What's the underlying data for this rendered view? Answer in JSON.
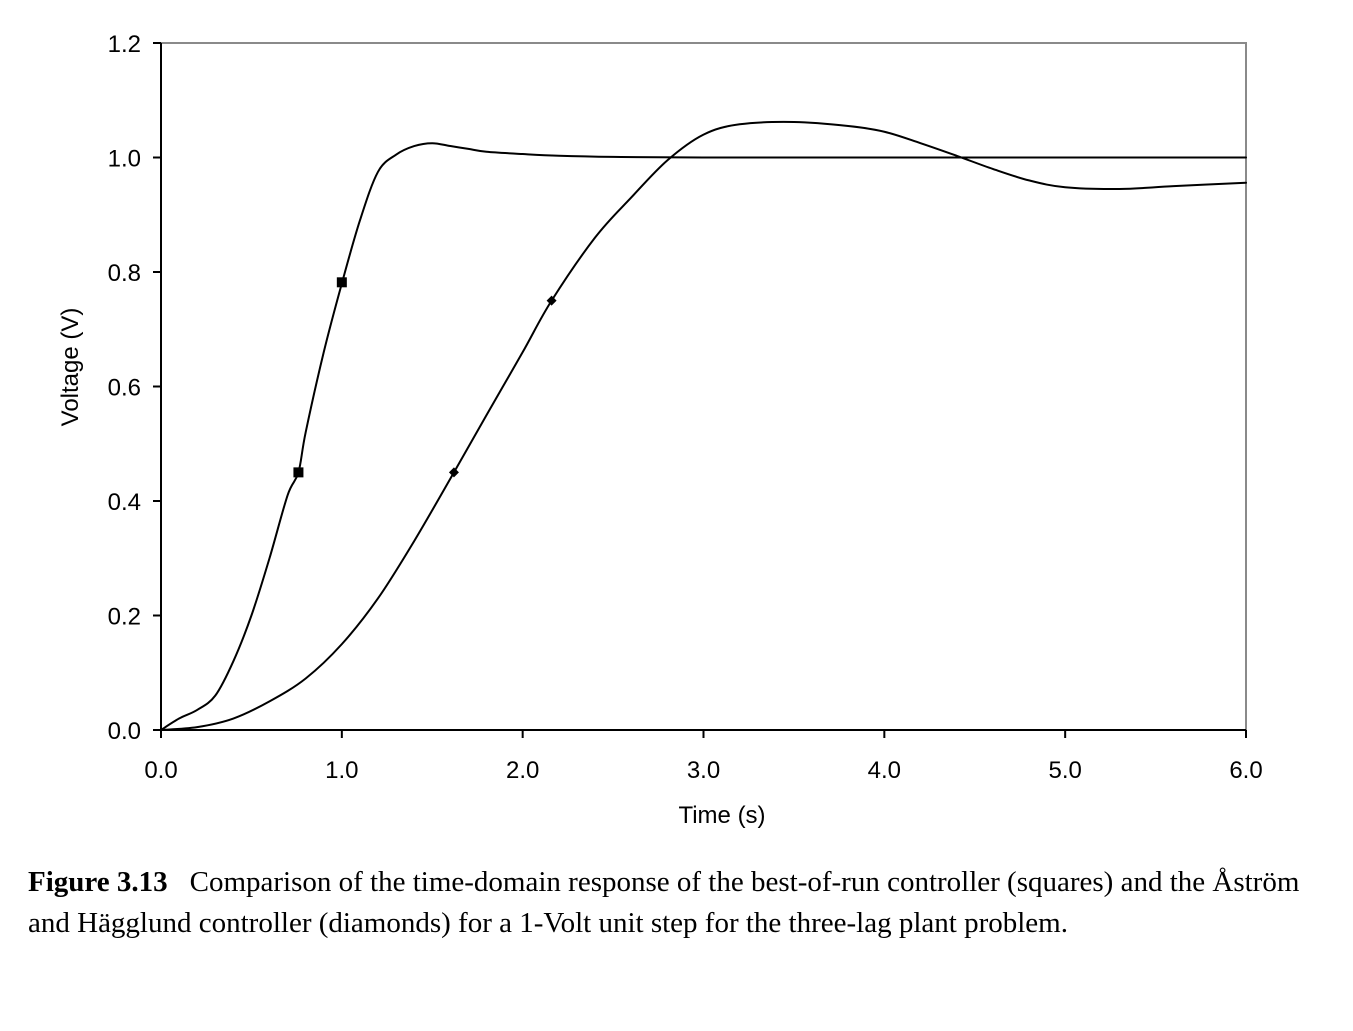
{
  "chart_data": {
    "type": "line",
    "title": "",
    "xlabel": "Time (s)",
    "ylabel": "Voltage (V)",
    "xlim": [
      0,
      6
    ],
    "ylim": [
      0,
      1.2
    ],
    "x_ticks": [
      "0.0",
      "1.0",
      "2.0",
      "3.0",
      "4.0",
      "5.0",
      "6.0"
    ],
    "y_ticks": [
      "0.0",
      "0.2",
      "0.4",
      "0.6",
      "0.8",
      "1.0",
      "1.2"
    ],
    "grid": false,
    "legend": "none",
    "setpoint": 1.0,
    "series": [
      {
        "marker": "square",
        "x": [
          0,
          0.1,
          0.2,
          0.3,
          0.4,
          0.5,
          0.6,
          0.7,
          0.76,
          0.8,
          0.9,
          1.0,
          1.1,
          1.2,
          1.3,
          1.4,
          1.5,
          1.6,
          1.7,
          1.8,
          2.0,
          2.2,
          2.5,
          3.0,
          4.0,
          5.0,
          6.0
        ],
        "y": [
          0,
          0.02,
          0.035,
          0.06,
          0.12,
          0.2,
          0.3,
          0.41,
          0.45,
          0.52,
          0.66,
          0.78,
          0.89,
          0.975,
          1.005,
          1.02,
          1.025,
          1.02,
          1.015,
          1.01,
          1.006,
          1.003,
          1.001,
          1.0,
          1.0,
          1.0,
          1.0
        ],
        "markers": [
          [
            0.76,
            0.45
          ],
          [
            1.0,
            0.782
          ]
        ]
      },
      {
        "marker": "diamond",
        "x": [
          0,
          0.2,
          0.4,
          0.6,
          0.8,
          1.0,
          1.2,
          1.4,
          1.62,
          1.8,
          2.0,
          2.16,
          2.4,
          2.6,
          2.8,
          3.0,
          3.2,
          3.5,
          3.8,
          4.0,
          4.2,
          4.4,
          4.6,
          4.8,
          5.0,
          5.3,
          5.6,
          6.0
        ],
        "y": [
          0,
          0.005,
          0.02,
          0.05,
          0.09,
          0.15,
          0.23,
          0.33,
          0.45,
          0.55,
          0.66,
          0.75,
          0.86,
          0.93,
          0.995,
          1.04,
          1.058,
          1.062,
          1.055,
          1.045,
          1.025,
          1.003,
          0.98,
          0.96,
          0.948,
          0.945,
          0.95,
          0.956
        ],
        "markers": [
          [
            1.62,
            0.45
          ],
          [
            2.16,
            0.75
          ]
        ]
      }
    ]
  },
  "caption": {
    "label": "Figure 3.13",
    "text": "Comparison of the time-domain response of the best-of-run controller (squares) and the Åström and Hägglund controller (diamonds) for a 1-Volt unit step for the three-lag plant problem."
  }
}
